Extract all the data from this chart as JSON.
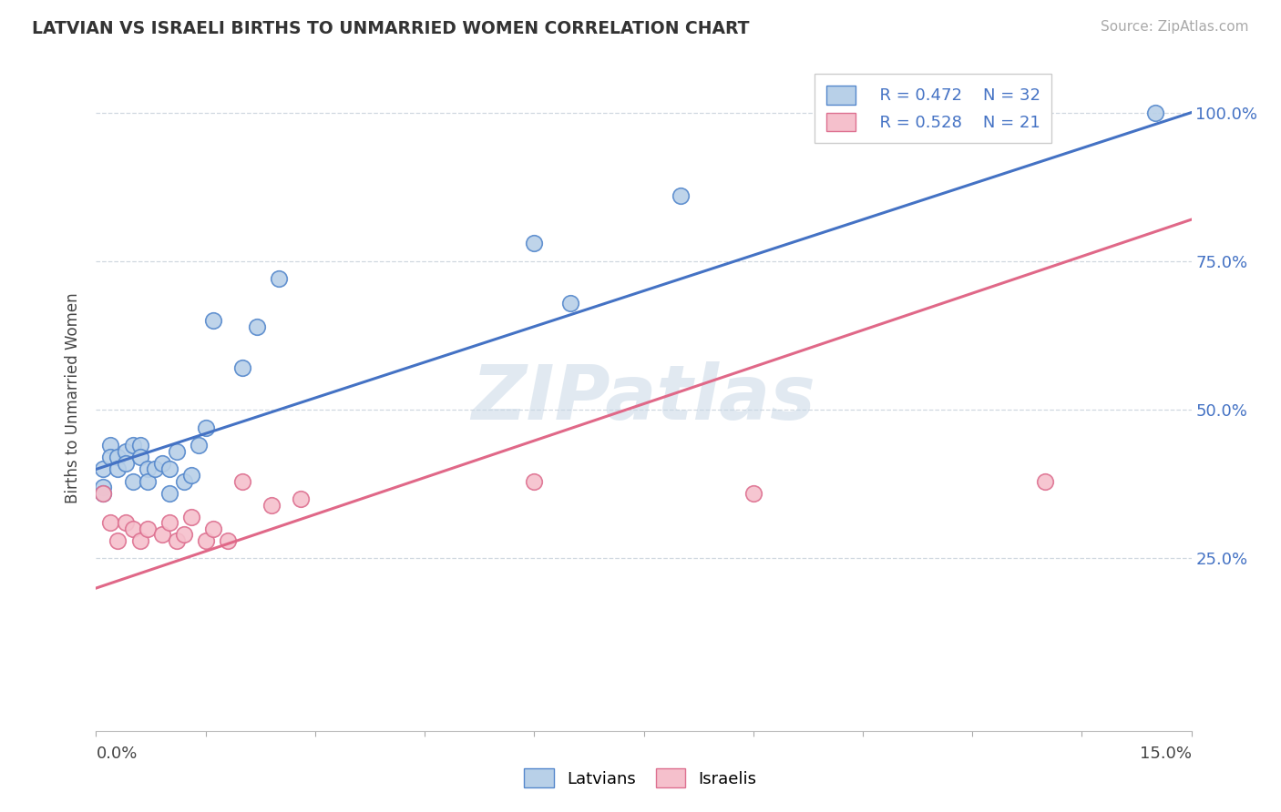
{
  "title": "LATVIAN VS ISRAELI BIRTHS TO UNMARRIED WOMEN CORRELATION CHART",
  "source": "Source: ZipAtlas.com",
  "ylabel": "Births to Unmarried Women",
  "xmin": 0.0,
  "xmax": 0.15,
  "ymin": -0.04,
  "ymax": 1.08,
  "blue_r": "R = 0.472",
  "blue_n": "N = 32",
  "pink_r": "R = 0.528",
  "pink_n": "N = 21",
  "blue_face": "#b8d0e8",
  "blue_edge": "#5588cc",
  "pink_face": "#f5c0cc",
  "pink_edge": "#dd7090",
  "blue_line": "#4472c4",
  "pink_line": "#e06888",
  "grid_color": "#d0d8e0",
  "yticks": [
    0.25,
    0.5,
    0.75,
    1.0
  ],
  "ytick_labels": [
    "25.0%",
    "50.0%",
    "75.0%",
    "100.0%"
  ],
  "legend_latvians": "Latvians",
  "legend_israelis": "Israelis",
  "watermark": "ZIPatlas",
  "blue_scatter_x": [
    0.001,
    0.001,
    0.001,
    0.002,
    0.002,
    0.003,
    0.003,
    0.004,
    0.004,
    0.005,
    0.005,
    0.006,
    0.006,
    0.007,
    0.007,
    0.008,
    0.009,
    0.01,
    0.01,
    0.011,
    0.012,
    0.013,
    0.014,
    0.015,
    0.016,
    0.02,
    0.022,
    0.025,
    0.06,
    0.065,
    0.08,
    0.145
  ],
  "blue_scatter_y": [
    0.4,
    0.37,
    0.36,
    0.44,
    0.42,
    0.42,
    0.4,
    0.43,
    0.41,
    0.44,
    0.38,
    0.44,
    0.42,
    0.4,
    0.38,
    0.4,
    0.41,
    0.4,
    0.36,
    0.43,
    0.38,
    0.39,
    0.44,
    0.47,
    0.65,
    0.57,
    0.64,
    0.72,
    0.78,
    0.68,
    0.86,
    1.0
  ],
  "pink_scatter_x": [
    0.001,
    0.002,
    0.003,
    0.004,
    0.005,
    0.006,
    0.007,
    0.009,
    0.01,
    0.011,
    0.012,
    0.013,
    0.015,
    0.016,
    0.018,
    0.02,
    0.024,
    0.028,
    0.06,
    0.09,
    0.13
  ],
  "pink_scatter_y": [
    0.36,
    0.31,
    0.28,
    0.31,
    0.3,
    0.28,
    0.3,
    0.29,
    0.31,
    0.28,
    0.29,
    0.32,
    0.28,
    0.3,
    0.28,
    0.38,
    0.34,
    0.35,
    0.38,
    0.36,
    0.38
  ],
  "blue_trend_x": [
    0.0,
    0.15
  ],
  "blue_trend_y": [
    0.4,
    1.0
  ],
  "pink_trend_x": [
    0.0,
    0.15
  ],
  "pink_trend_y": [
    0.2,
    0.82
  ]
}
